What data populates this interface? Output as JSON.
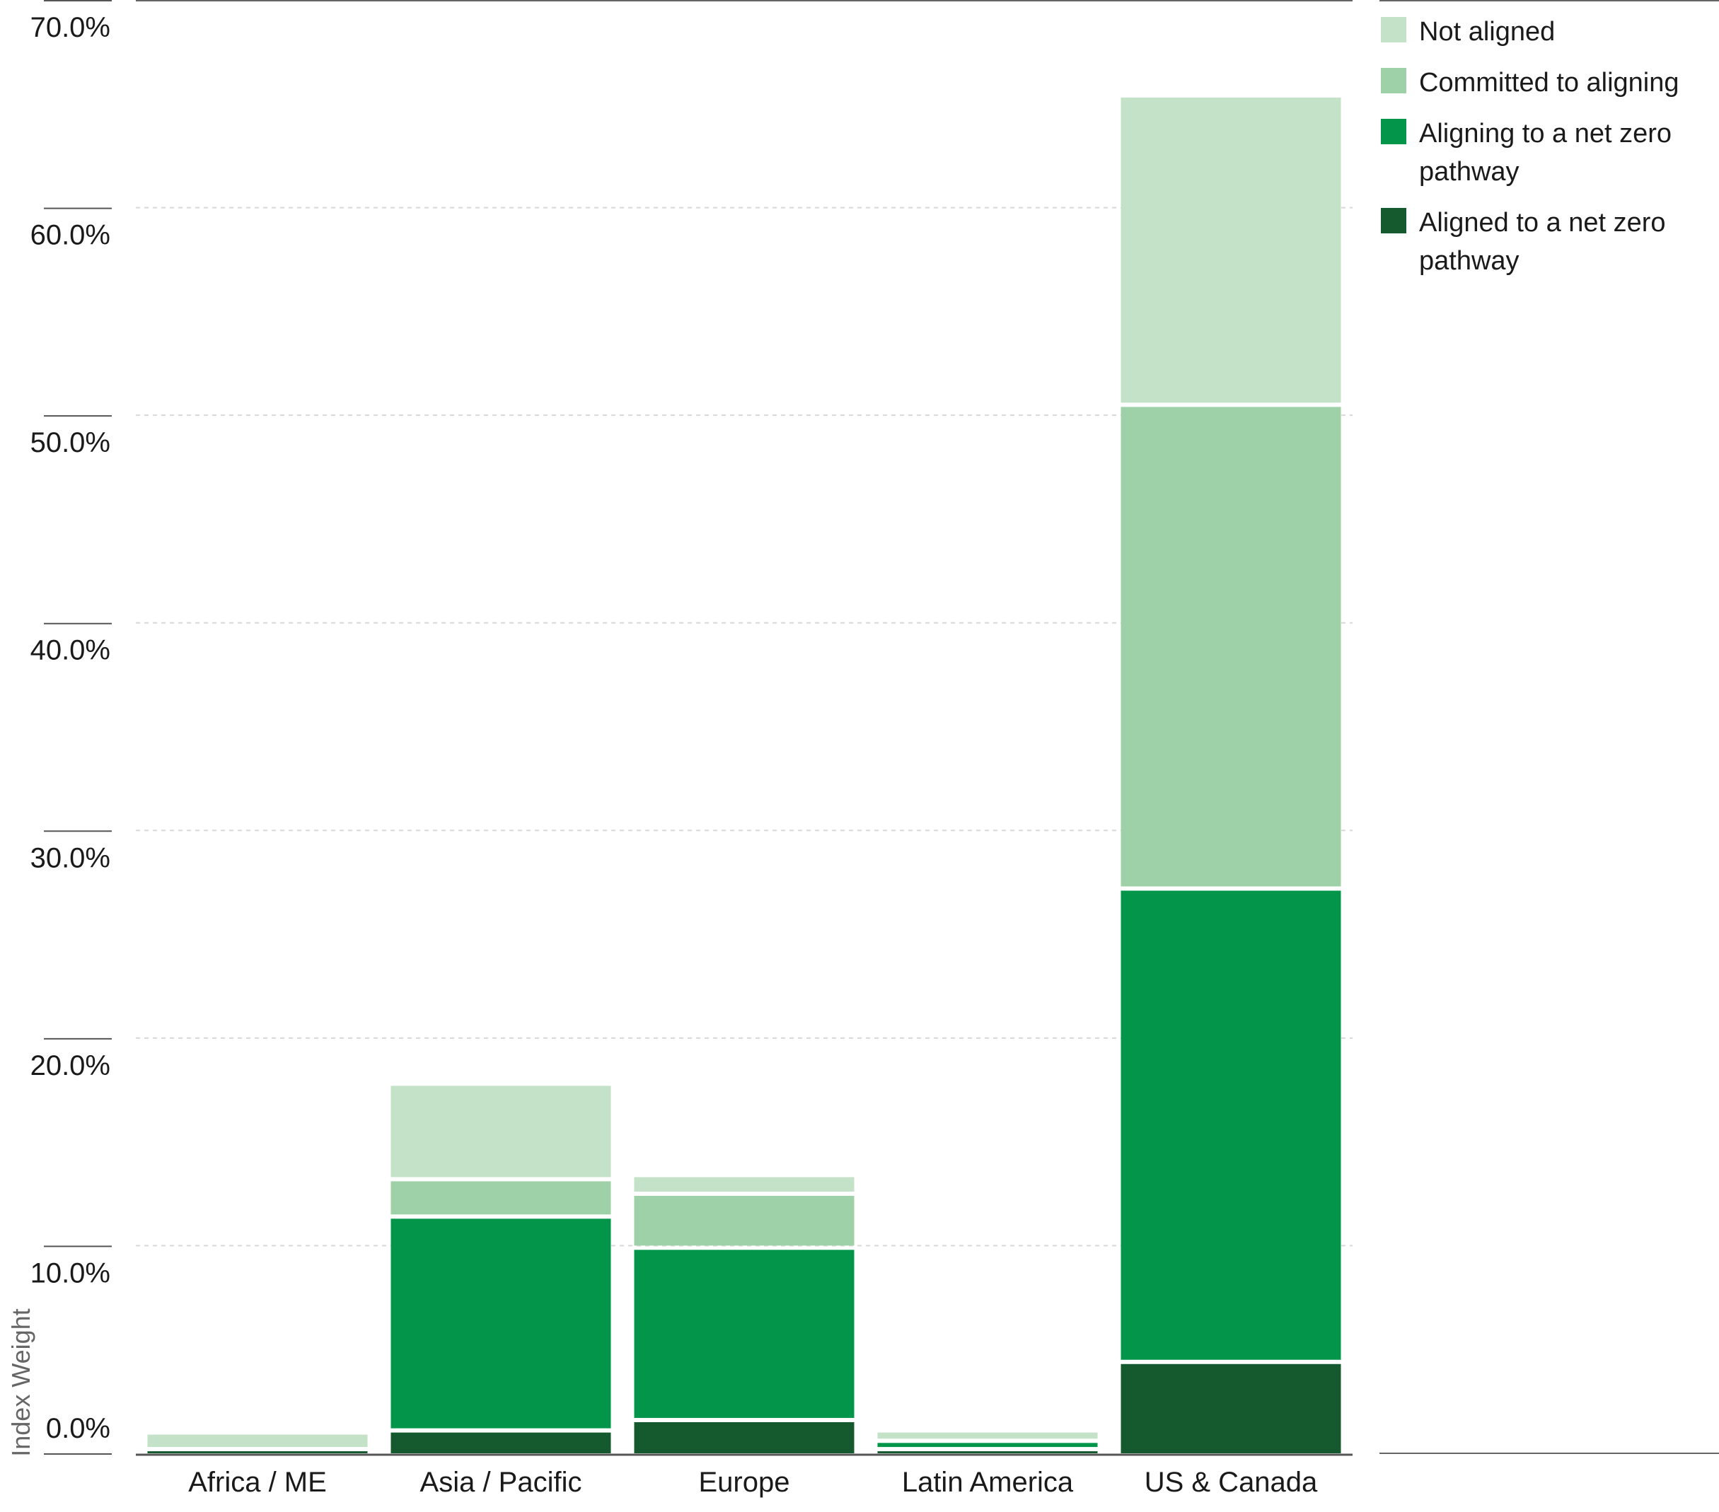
{
  "chart_data": {
    "type": "bar",
    "stacked": true,
    "ylabel": "Index Weight",
    "ylim": [
      0,
      70
    ],
    "yticks": [
      "0.0%",
      "10.0%",
      "20.0%",
      "30.0%",
      "40.0%",
      "50.0%",
      "60.0%",
      "70.0%"
    ],
    "grid": true,
    "legend_position": "right",
    "categories": [
      "Africa / ME",
      "Asia / Pacific",
      "Europe",
      "Latin America",
      "US & Canada"
    ],
    "series": [
      {
        "name": "Aligned to a net zero pathway",
        "color": "#145a2e",
        "values": [
          0.1,
          1.0,
          1.5,
          0.1,
          4.3
        ]
      },
      {
        "name": "Aligning to a net zero pathway",
        "color": "#03964a",
        "values": [
          0.0,
          10.3,
          8.3,
          0.4,
          22.8
        ]
      },
      {
        "name": "Committed to aligning",
        "color": "#9fd1a8",
        "values": [
          0.0,
          1.8,
          2.6,
          0.0,
          23.3
        ]
      },
      {
        "name": "Not aligned",
        "color": "#c4e2c8",
        "values": [
          0.8,
          4.6,
          0.9,
          0.5,
          14.9
        ]
      }
    ],
    "legend_order": [
      "Not aligned",
      "Committed to aligning",
      "Aligning to a net zero pathway",
      "Aligned to a net zero pathway"
    ]
  }
}
